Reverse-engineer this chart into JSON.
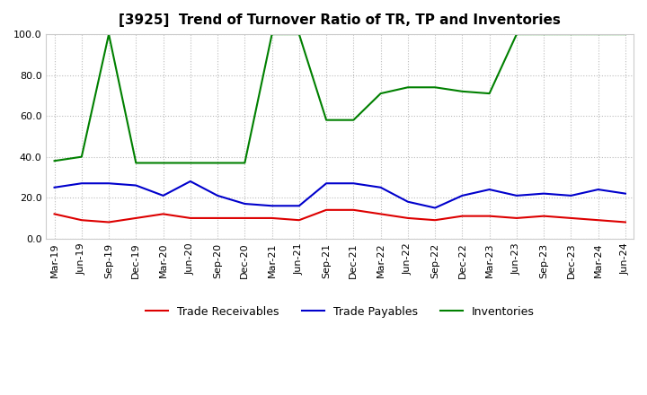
{
  "title": "[3925]  Trend of Turnover Ratio of TR, TP and Inventories",
  "ylim": [
    0.0,
    100.0
  ],
  "yticks": [
    0.0,
    20.0,
    40.0,
    60.0,
    80.0,
    100.0
  ],
  "categories": [
    "Mar-19",
    "Jun-19",
    "Sep-19",
    "Dec-19",
    "Mar-20",
    "Jun-20",
    "Sep-20",
    "Dec-20",
    "Mar-21",
    "Jun-21",
    "Sep-21",
    "Dec-21",
    "Mar-22",
    "Jun-22",
    "Sep-22",
    "Dec-22",
    "Mar-23",
    "Jun-23",
    "Sep-23",
    "Dec-23",
    "Mar-24",
    "Jun-24"
  ],
  "trade_receivables": [
    12.0,
    9.0,
    8.0,
    10.0,
    12.0,
    10.0,
    10.0,
    10.0,
    10.0,
    9.0,
    14.0,
    14.0,
    12.0,
    10.0,
    9.0,
    11.0,
    11.0,
    10.0,
    11.0,
    10.0,
    9.0,
    8.0
  ],
  "trade_payables": [
    25.0,
    27.0,
    27.0,
    26.0,
    21.0,
    28.0,
    21.0,
    17.0,
    16.0,
    16.0,
    27.0,
    27.0,
    25.0,
    18.0,
    15.0,
    21.0,
    24.0,
    21.0,
    22.0,
    21.0,
    24.0,
    22.0
  ],
  "inventories": [
    38.0,
    40.0,
    100.0,
    37.0,
    37.0,
    37.0,
    37.0,
    37.0,
    100.0,
    100.0,
    58.0,
    58.0,
    71.0,
    74.0,
    74.0,
    72.0,
    71.0,
    100.0,
    100.0,
    100.0,
    100.0,
    100.0
  ],
  "tr_color": "#dd0000",
  "tp_color": "#0000cc",
  "inv_color": "#008000",
  "bg_color": "#ffffff",
  "plot_bg_color": "#ffffff",
  "grid_color": "#bbbbbb",
  "title_fontsize": 11,
  "legend_fontsize": 9,
  "tick_fontsize": 8
}
